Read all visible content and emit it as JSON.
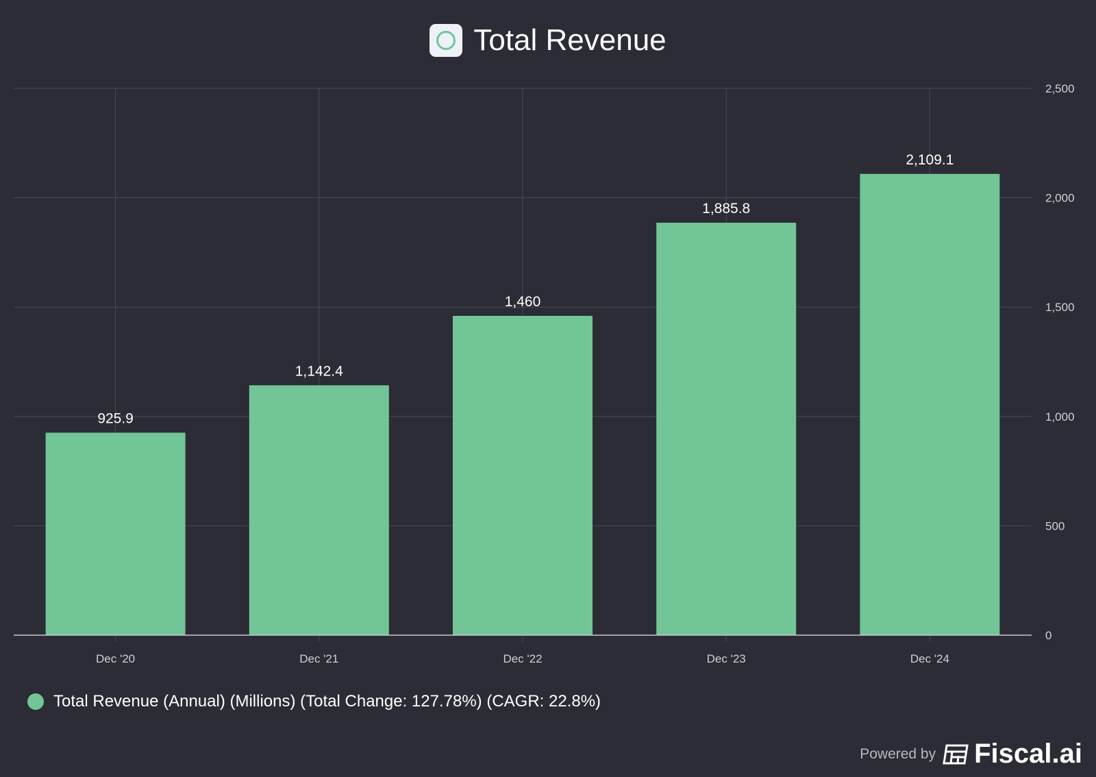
{
  "title": "Total Revenue",
  "legend_label": "Total Revenue (Annual) (Millions) (Total Change: 127.78%) (CAGR: 22.8%)",
  "footer": {
    "powered_by": "Powered by",
    "brand": "Fiscal.ai"
  },
  "colors": {
    "bar": "#72c597",
    "background": "#2b2c35",
    "grid": "#4a4b55"
  },
  "chart_data": {
    "type": "bar",
    "title": "Total Revenue",
    "categories": [
      "Dec '20",
      "Dec '21",
      "Dec '22",
      "Dec '23",
      "Dec '24"
    ],
    "values": [
      925.9,
      1142.4,
      1460,
      1885.8,
      2109.1
    ],
    "value_labels": [
      "925.9",
      "1,142.4",
      "1,460",
      "1,885.8",
      "2,109.1"
    ],
    "ylim": [
      0,
      2500
    ],
    "yticks": [
      0,
      500,
      1000,
      1500,
      2000,
      2500
    ],
    "ytick_labels": [
      "0",
      "500",
      "1,000",
      "1,500",
      "2,000",
      "2,500"
    ],
    "y_axis_side": "right",
    "grid": true,
    "legend_placement": "bottom-left"
  }
}
